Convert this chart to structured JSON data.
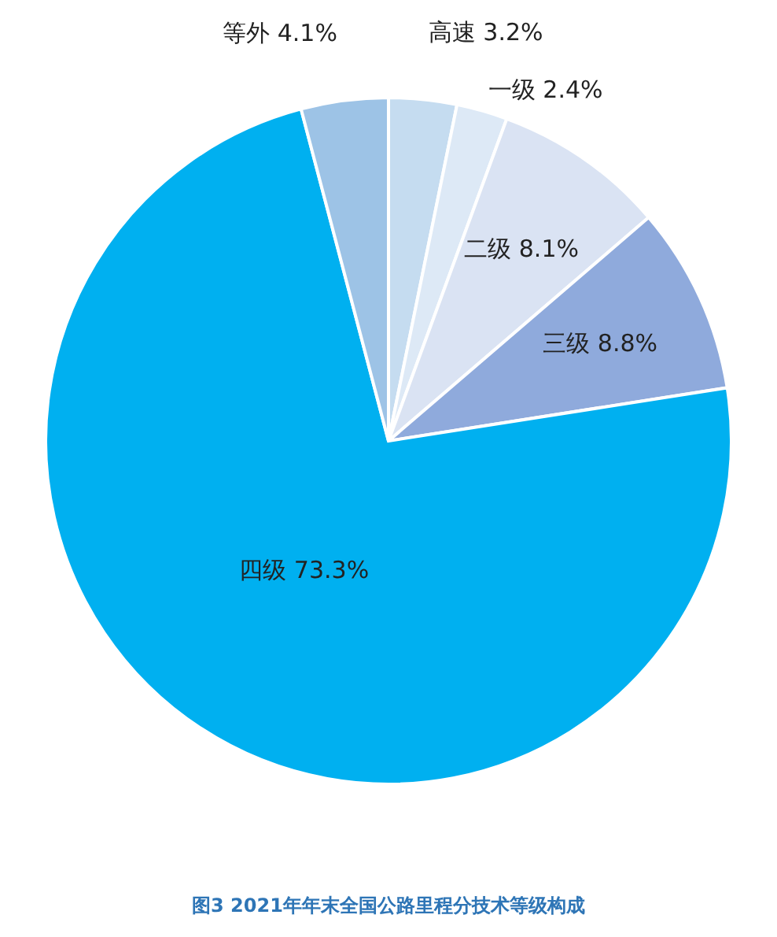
{
  "chart_data": {
    "type": "pie",
    "title": "图3  2021年年末全国公路里程分技术等级构成",
    "categories": [
      "高速",
      "一级",
      "二级",
      "三级",
      "四级",
      "等外"
    ],
    "values": [
      3.2,
      2.4,
      8.1,
      8.8,
      73.3,
      4.1
    ],
    "value_labels": [
      "3.2%",
      "2.4%",
      "8.1%",
      "8.8%",
      "73.3%",
      "4.1%"
    ],
    "colors": [
      "#c5dcf0",
      "#dde9f6",
      "#dae3f3",
      "#8faadc",
      "#00b0f0",
      "#9dc3e6"
    ]
  }
}
